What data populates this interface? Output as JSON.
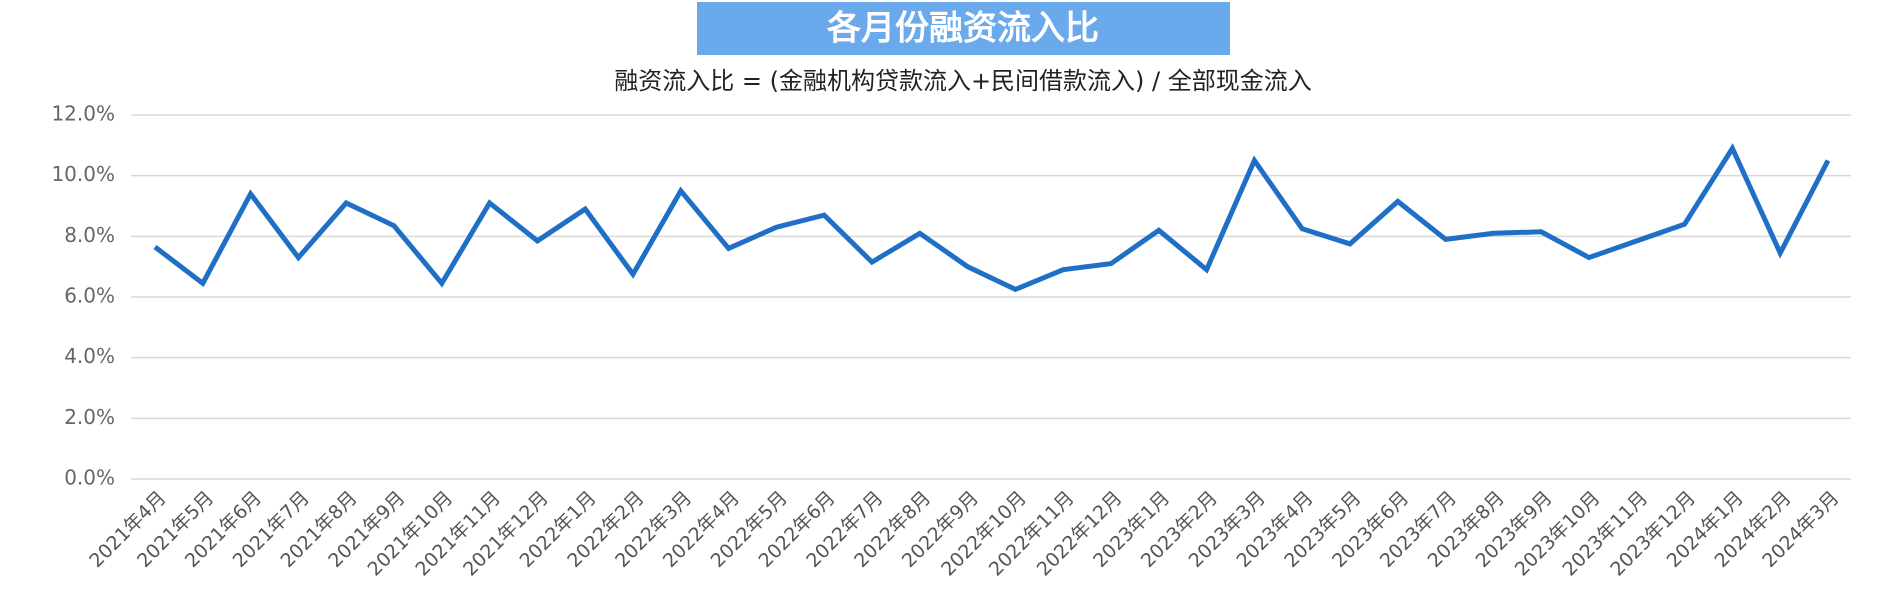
{
  "chart_data": {
    "type": "line",
    "title": "各月份融资流入比",
    "subtitle": "融资流入比 = (金融机构贷款流入+民间借款流入) / 全部现金流入",
    "categories": [
      "2021年4月",
      "2021年5月",
      "2021年6月",
      "2021年7月",
      "2021年8月",
      "2021年9月",
      "2021年10月",
      "2021年11月",
      "2021年12月",
      "2022年1月",
      "2022年2月",
      "2022年3月",
      "2022年4月",
      "2022年5月",
      "2022年6月",
      "2022年7月",
      "2022年8月",
      "2022年9月",
      "2022年10月",
      "2022年11月",
      "2022年12月",
      "2023年1月",
      "2023年2月",
      "2023年3月",
      "2023年4月",
      "2023年5月",
      "2023年6月",
      "2023年7月",
      "2023年8月",
      "2023年9月",
      "2023年10月",
      "2023年11月",
      "2023年12月",
      "2024年1月",
      "2024年2月",
      "2024年3月"
    ],
    "values": [
      7.65,
      6.45,
      9.4,
      7.3,
      9.1,
      8.35,
      6.45,
      9.1,
      7.85,
      8.9,
      6.75,
      9.5,
      7.6,
      8.3,
      8.7,
      7.15,
      8.1,
      7.0,
      6.25,
      6.9,
      7.1,
      8.2,
      6.9,
      10.5,
      8.25,
      7.75,
      9.15,
      7.9,
      8.1,
      8.15,
      7.3,
      7.85,
      8.4,
      10.9,
      7.45,
      10.5
    ],
    "color": "#1f6fc6",
    "ylim": [
      0,
      12
    ],
    "yticks": [
      {
        "value": 0,
        "label": "0.0%"
      },
      {
        "value": 2,
        "label": "2.0%"
      },
      {
        "value": 4,
        "label": "4.0%"
      },
      {
        "value": 6,
        "label": "6.0%"
      },
      {
        "value": 8,
        "label": "8.0%"
      },
      {
        "value": 10,
        "label": "10.0%"
      },
      {
        "value": 12,
        "label": "12.0%"
      }
    ],
    "grid": true
  }
}
